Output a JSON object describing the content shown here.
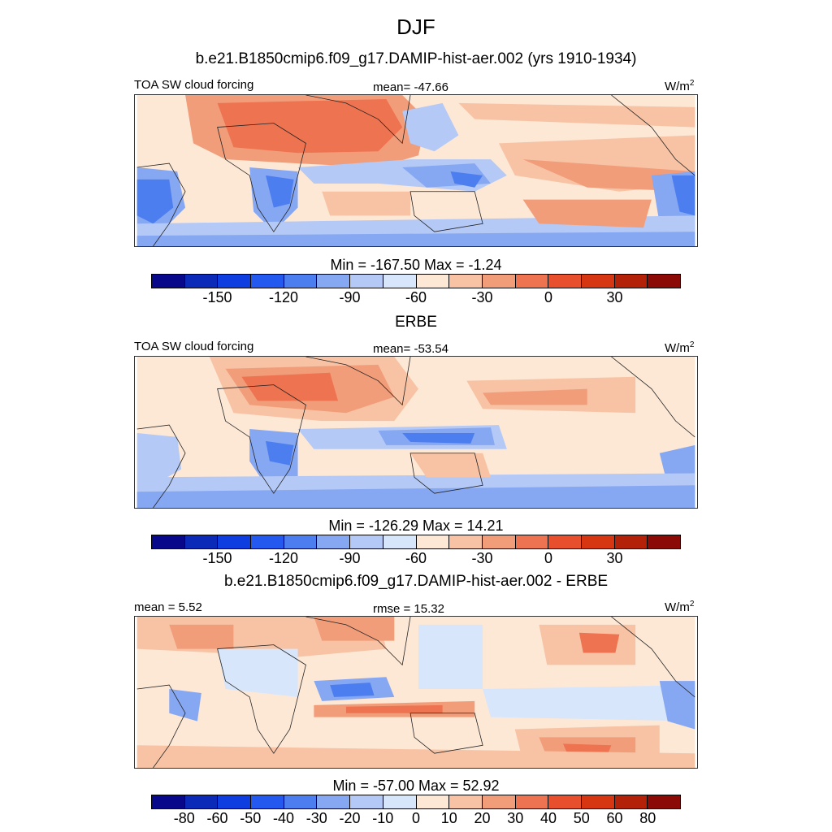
{
  "title": "DJF",
  "colors": [
    "#08088a",
    "#0b2ab8",
    "#0f3ee0",
    "#2459f0",
    "#4d7ef0",
    "#86a7f2",
    "#b4c9f5",
    "#d8e6fb",
    "#fde8d6",
    "#f7c3a4",
    "#f29d7a",
    "#ee7350",
    "#e8502d",
    "#d63612",
    "#b32208",
    "#8b0a05"
  ],
  "panels": [
    {
      "subtitle": "b.e21.B1850cmip6.f09_g17.DAMIP-hist-aer.002 (yrs 1910-1934)",
      "left_label": "TOA SW cloud forcing",
      "center_label": "mean= -47.66",
      "units_base": "W/m",
      "units_exp": "2",
      "minmax": "Min = -167.50 Max =  -1.24",
      "ticks": [
        "-150",
        "-120",
        "-90",
        "-60",
        "-30",
        "0",
        "30"
      ]
    },
    {
      "subtitle": "ERBE",
      "left_label": "TOA SW cloud forcing",
      "center_label": "mean= -53.54",
      "units_base": "W/m",
      "units_exp": "2",
      "minmax": "Min = -126.29 Max =  14.21",
      "ticks": [
        "-150",
        "-120",
        "-90",
        "-60",
        "-30",
        "0",
        "30"
      ]
    },
    {
      "subtitle": "b.e21.B1850cmip6.f09_g17.DAMIP-hist-aer.002 - ERBE",
      "left_label": "mean =   5.52",
      "center_label": "rmse =  15.32",
      "units_base": "W/m",
      "units_exp": "2",
      "minmax": "Min = -57.00 Max =  52.92",
      "ticks": [
        "-80",
        "-60",
        "-50",
        "-40",
        "-30",
        "-20",
        "-10",
        "0",
        "10",
        "20",
        "30",
        "40",
        "50",
        "60",
        "80"
      ]
    }
  ]
}
